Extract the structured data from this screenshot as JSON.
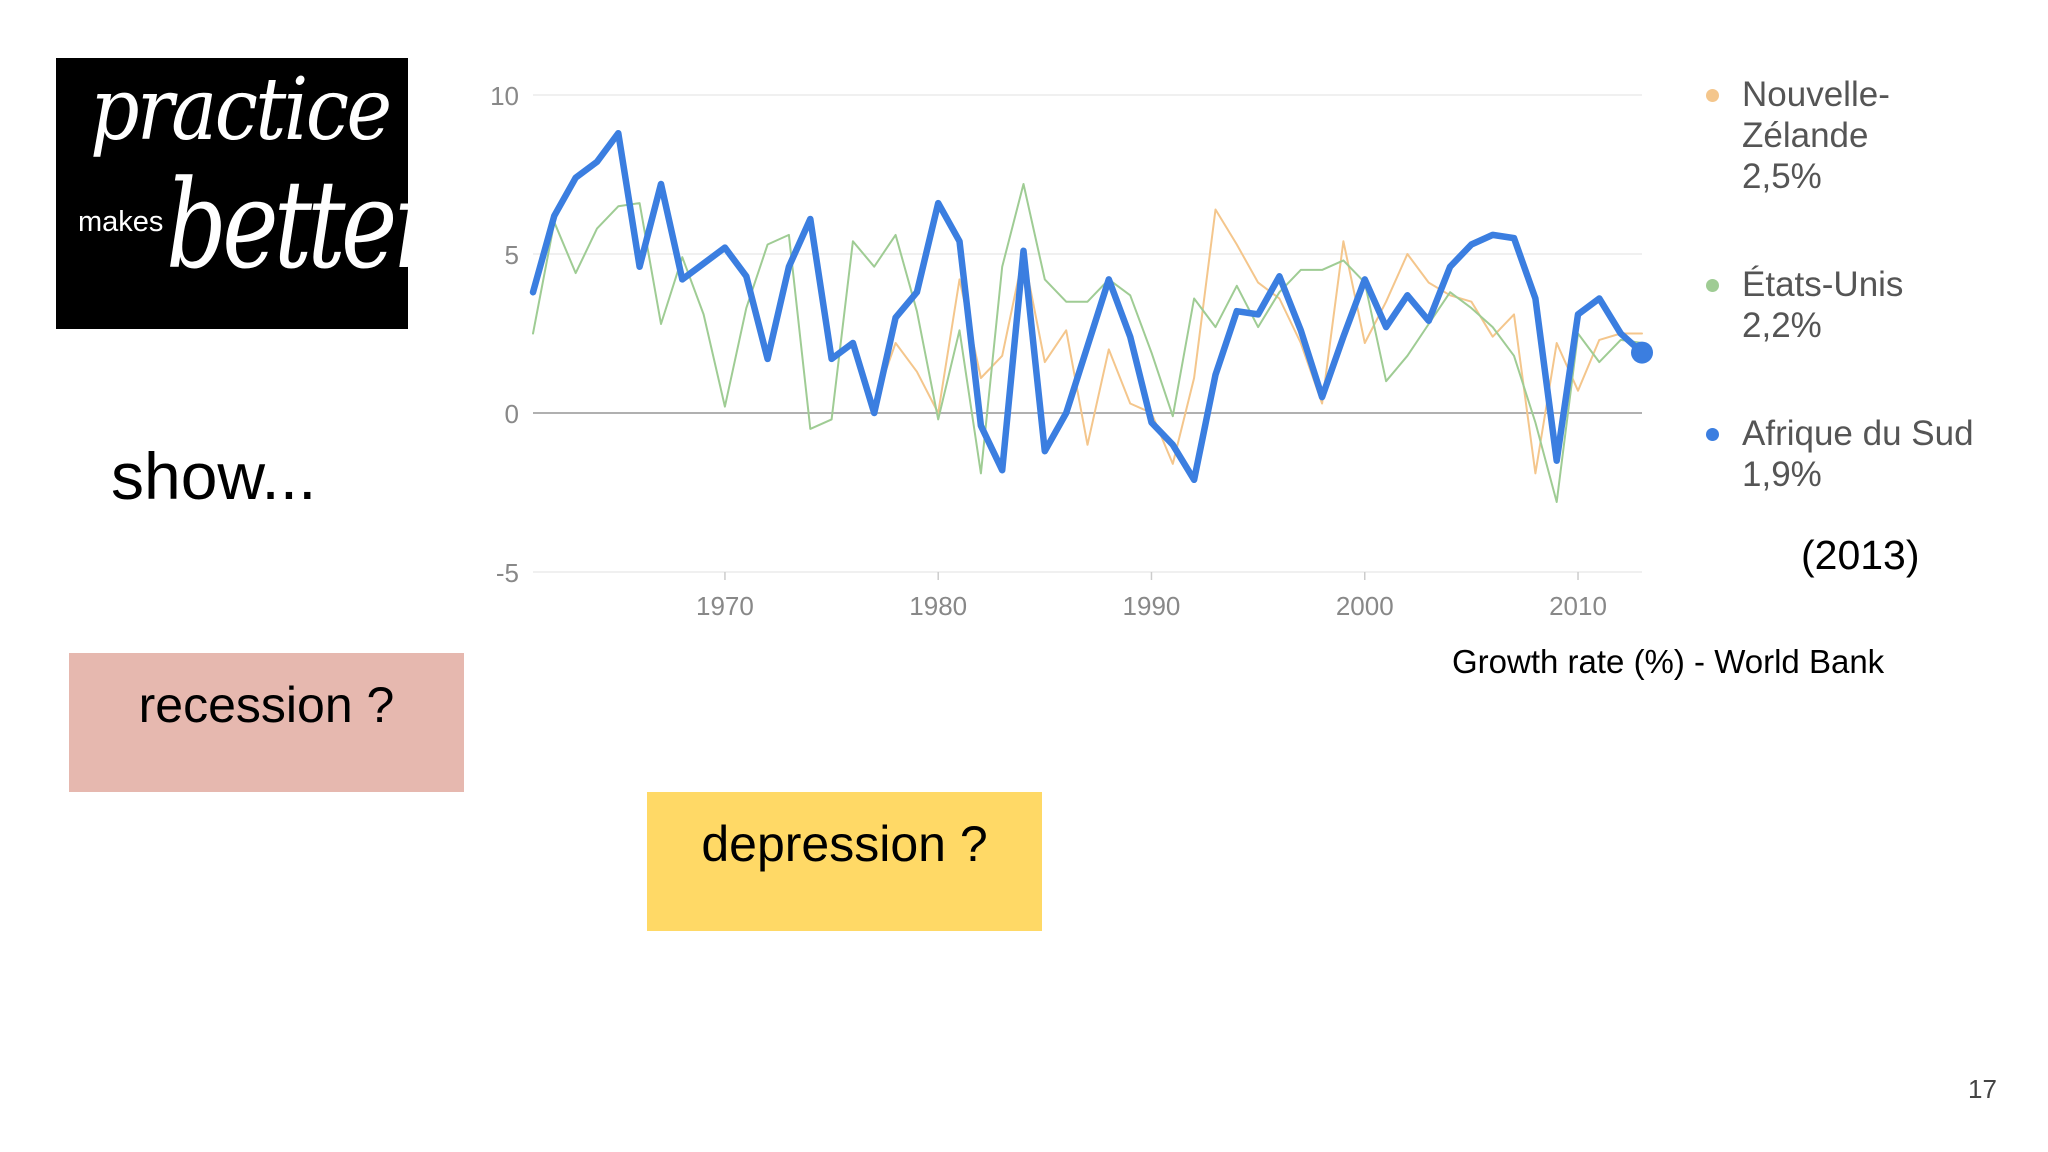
{
  "logo": {
    "word1": "practice",
    "word2": "makes",
    "word3": "better"
  },
  "prompt_text": "show...",
  "boxes": {
    "recession": "recession ?",
    "depression": "depression ?"
  },
  "year_note": "(2013)",
  "source": "Growth rate (%) - World Bank",
  "page_number": "17",
  "colors": {
    "nz": "#f4c68c",
    "us": "#9fcc94",
    "za": "#3b7ee0",
    "recession_bg": "#e6b8af",
    "depression_bg": "#ffd966"
  },
  "legend": [
    {
      "lines": [
        "Nouvelle-",
        "Zélande",
        "2,5%"
      ],
      "color": "#f4c68c"
    },
    {
      "lines": [
        "États-Unis",
        "2,2%"
      ],
      "color": "#9fcc94"
    },
    {
      "lines": [
        "Afrique du Sud",
        "1,9%"
      ],
      "color": "#3b7ee0"
    }
  ],
  "chart_data": {
    "type": "line",
    "title": "",
    "xlabel": "",
    "ylabel": "",
    "xlim": [
      1961,
      2013
    ],
    "ylim": [
      -5,
      10
    ],
    "x_ticks": [
      1970,
      1980,
      1990,
      2000,
      2010
    ],
    "x_tick_labels": [
      "1970",
      "1980",
      "1990",
      "2000",
      "2010"
    ],
    "y_ticks": [
      -5,
      0,
      5,
      10
    ],
    "y_tick_labels": [
      "-5",
      "0",
      "5",
      "10"
    ],
    "grid": true,
    "legend_position": "right",
    "series": [
      {
        "name": "Nouvelle-Zélande",
        "color": "#f4c68c",
        "x": [
          1977,
          1978,
          1979,
          1980,
          1981,
          1982,
          1983,
          1984,
          1985,
          1986,
          1987,
          1988,
          1989,
          1990,
          1991,
          1992,
          1993,
          1994,
          1995,
          1996,
          1997,
          1998,
          1999,
          2000,
          2001,
          2002,
          2003,
          2004,
          2005,
          2006,
          2007,
          2008,
          2009,
          2010,
          2011,
          2012,
          2013
        ],
        "values": [
          0.3,
          2.2,
          1.3,
          0.0,
          4.2,
          1.1,
          1.8,
          5.0,
          1.6,
          2.6,
          -1.0,
          2.0,
          0.3,
          0.0,
          -1.6,
          1.1,
          6.4,
          5.3,
          4.1,
          3.6,
          2.2,
          0.3,
          5.4,
          2.2,
          3.5,
          5.0,
          4.1,
          3.7,
          3.5,
          2.4,
          3.1,
          -1.9,
          2.2,
          0.7,
          2.3,
          2.5,
          2.5
        ]
      },
      {
        "name": "États-Unis",
        "color": "#9fcc94",
        "x": [
          1961,
          1962,
          1963,
          1964,
          1965,
          1966,
          1967,
          1968,
          1969,
          1970,
          1971,
          1972,
          1973,
          1974,
          1975,
          1976,
          1977,
          1978,
          1979,
          1980,
          1981,
          1982,
          1983,
          1984,
          1985,
          1986,
          1987,
          1988,
          1989,
          1990,
          1991,
          1992,
          1993,
          1994,
          1995,
          1996,
          1997,
          1998,
          1999,
          2000,
          2001,
          2002,
          2003,
          2004,
          2005,
          2006,
          2007,
          2008,
          2009,
          2010,
          2011,
          2012,
          2013
        ],
        "values": [
          2.5,
          6.0,
          4.4,
          5.8,
          6.5,
          6.6,
          2.8,
          4.9,
          3.1,
          0.2,
          3.3,
          5.3,
          5.6,
          -0.5,
          -0.2,
          5.4,
          4.6,
          5.6,
          3.2,
          -0.2,
          2.6,
          -1.9,
          4.6,
          7.2,
          4.2,
          3.5,
          3.5,
          4.2,
          3.7,
          1.9,
          -0.1,
          3.6,
          2.7,
          4.0,
          2.7,
          3.8,
          4.5,
          4.5,
          4.8,
          4.1,
          1.0,
          1.8,
          2.8,
          3.8,
          3.3,
          2.7,
          1.8,
          -0.3,
          -2.8,
          2.5,
          1.6,
          2.3,
          2.2
        ]
      },
      {
        "name": "Afrique du Sud",
        "color": "#3b7ee0",
        "x": [
          1961,
          1962,
          1963,
          1964,
          1965,
          1966,
          1967,
          1968,
          1969,
          1970,
          1971,
          1972,
          1973,
          1974,
          1975,
          1976,
          1977,
          1978,
          1979,
          1980,
          1981,
          1982,
          1983,
          1984,
          1985,
          1986,
          1987,
          1988,
          1989,
          1990,
          1991,
          1992,
          1993,
          1994,
          1995,
          1996,
          1997,
          1998,
          1999,
          2000,
          2001,
          2002,
          2003,
          2004,
          2005,
          2006,
          2007,
          2008,
          2009,
          2010,
          2011,
          2012,
          2013
        ],
        "values": [
          3.8,
          6.2,
          7.4,
          7.9,
          8.8,
          4.6,
          7.2,
          4.2,
          4.7,
          5.2,
          4.3,
          1.7,
          4.6,
          6.1,
          1.7,
          2.2,
          0.0,
          3.0,
          3.8,
          6.6,
          5.4,
          -0.4,
          -1.8,
          5.1,
          -1.2,
          0.0,
          2.1,
          4.2,
          2.4,
          -0.3,
          -1.0,
          -2.1,
          1.2,
          3.2,
          3.1,
          4.3,
          2.6,
          0.5,
          2.4,
          4.2,
          2.7,
          3.7,
          2.9,
          4.6,
          5.3,
          5.6,
          5.5,
          3.6,
          -1.5,
          3.1,
          3.6,
          2.5,
          1.9
        ]
      }
    ]
  }
}
